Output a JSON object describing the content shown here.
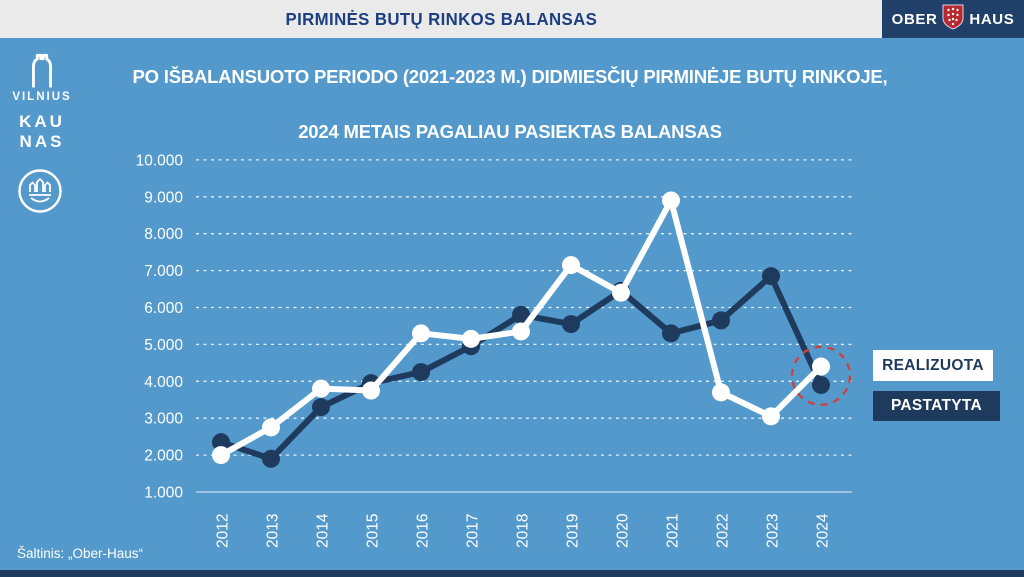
{
  "header": {
    "title": "PIRMINĖS BUTŲ RINKOS BALANSAS",
    "brand": {
      "left": "OBER",
      "right": "HAUS"
    }
  },
  "city_logos": {
    "vilnius": {
      "label": "VILNIUS"
    },
    "kaunas": {
      "line1": "KAU",
      "line2": "NAS"
    },
    "klaipeda": {
      "name": "Klaipėda city logo"
    }
  },
  "title": {
    "line1": "PO IŠBALANSUOTO PERIODO (2021-2023 M.) DIDMIESČIŲ PIRMINĖJE BUTŲ RINKOJE,",
    "line2": "2024 METAIS PAGALIAU PASIEKTAS BALANSAS"
  },
  "legend": [
    {
      "label": "REALIZUOTA",
      "swatch": "#FFFFFF",
      "text_color": "#1E3B5D"
    },
    {
      "label": "PASTATYTA",
      "swatch": "#1E3B5D",
      "text_color": "#FFFFFF"
    }
  ],
  "source": "Šaltinis: „Ober-Haus“",
  "colors": {
    "background": "#5499CC",
    "header_bg": "#EAEAEA",
    "header_text": "#1D3E80",
    "brand_box": "#20406A",
    "brand_shield_red": "#B9282F",
    "navy": "#1E3B5D",
    "white": "#FFFFFF",
    "annotation_red": "#C84440"
  },
  "chart_data": {
    "type": "line",
    "title": "PO IŠBALANSUOTO PERIODO (2021-2023 M.) DIDMIESČIŲ PIRMINĖJE BUTŲ RINKOJE, 2024 METAIS PAGALIAU PASIEKTAS BALANSAS",
    "categories": [
      "2012",
      "2013",
      "2014",
      "2015",
      "2016",
      "2017",
      "2018",
      "2019",
      "2020",
      "2021",
      "2022",
      "2023",
      "2024"
    ],
    "series": [
      {
        "name": "REALIZUOTA",
        "color": "#FFFFFF",
        "values": [
          2000,
          2750,
          3800,
          3750,
          5300,
          5150,
          5350,
          7150,
          6400,
          8900,
          3700,
          3050,
          4400
        ]
      },
      {
        "name": "PASTATYTA",
        "color": "#1E3B5D",
        "values": [
          2350,
          1900,
          3300,
          3950,
          4250,
          4950,
          5800,
          5550,
          6450,
          5300,
          5650,
          6850,
          3900
        ]
      }
    ],
    "ylim": [
      1000,
      10000
    ],
    "ytick_step": 1000,
    "ytick_labels": [
      "1.000",
      "2.000",
      "3.000",
      "4.000",
      "5.000",
      "6.000",
      "7.000",
      "8.000",
      "9.000",
      "10.000"
    ],
    "grid": "dashed-horizontal",
    "legend_position": "right",
    "annotation": {
      "type": "dashed_circle",
      "category": "2024",
      "color": "#C84440"
    }
  }
}
